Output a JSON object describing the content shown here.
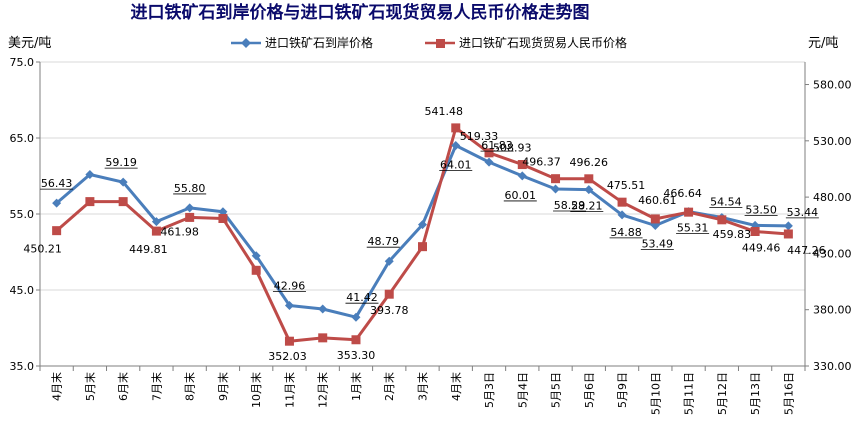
{
  "chart_data": {
    "type": "line",
    "title": "进口铁矿石到岸价格与进口铁矿石现货贸易人民币价格走势图",
    "y_left_label": "美元/吨",
    "y_right_label": "元/吨",
    "y_left_lim": [
      35.0,
      75.0
    ],
    "y_left_ticks": [
      "35.0",
      "45.0",
      "55.0",
      "65.0",
      "75.0"
    ],
    "y_right_lim": [
      330.0,
      600.0
    ],
    "y_right_ticks": [
      "330.00",
      "380.00",
      "430.00",
      "480.00",
      "530.00",
      "580.00"
    ],
    "categories": [
      "4月末",
      "5月末",
      "6月末",
      "7月末",
      "8月末",
      "9月末",
      "10月末",
      "11月末",
      "12月末",
      "1月末",
      "2月末",
      "3月末",
      "4月末",
      "5月3日",
      "5月4日",
      "5月5日",
      "5月6日",
      "5月9日",
      "5月10日",
      "5月11日",
      "5月12日",
      "5月13日",
      "5月16日"
    ],
    "legend_position": "top",
    "grid": true,
    "series": [
      {
        "name": "进口铁矿石到岸价格",
        "axis": "left",
        "color": "#4a7ebb",
        "marker": "diamond",
        "values": [
          56.43,
          60.2,
          59.19,
          54.0,
          55.8,
          55.3,
          49.5,
          42.96,
          42.5,
          41.42,
          48.79,
          53.6,
          64.01,
          61.83,
          60.01,
          58.29,
          58.21,
          54.88,
          53.49,
          55.31,
          54.54,
          53.5,
          53.44
        ],
        "labels": [
          "56.43",
          "",
          "59.19",
          "",
          "55.80",
          "",
          "",
          "42.96",
          "",
          "41.42",
          "48.79",
          "",
          "64.01",
          "61.83",
          "60.01",
          "58.29",
          "58.21",
          "54.88",
          "53.49",
          "55.31",
          "54.54",
          "53.50",
          "53.44"
        ]
      },
      {
        "name": "进口铁矿石现货贸易人民币价格",
        "axis": "right",
        "color": "#be4b48",
        "marker": "square",
        "values": [
          450.21,
          476.0,
          476.0,
          449.81,
          461.98,
          461.0,
          415.0,
          352.03,
          355.0,
          353.3,
          393.78,
          436.0,
          541.48,
          519.33,
          508.93,
          496.37,
          496.26,
          475.51,
          460.61,
          466.64,
          459.83,
          449.46,
          447.26
        ],
        "labels": [
          "450.21",
          "",
          "",
          "449.81",
          "461.98",
          "",
          "",
          "352.03",
          "",
          "353.30",
          "393.78",
          "",
          "541.48",
          "519.33",
          "508.93",
          "496.37",
          "496.26",
          "475.51",
          "460.61",
          "466.64",
          "459.83",
          "449.46",
          "447.26"
        ]
      }
    ]
  }
}
